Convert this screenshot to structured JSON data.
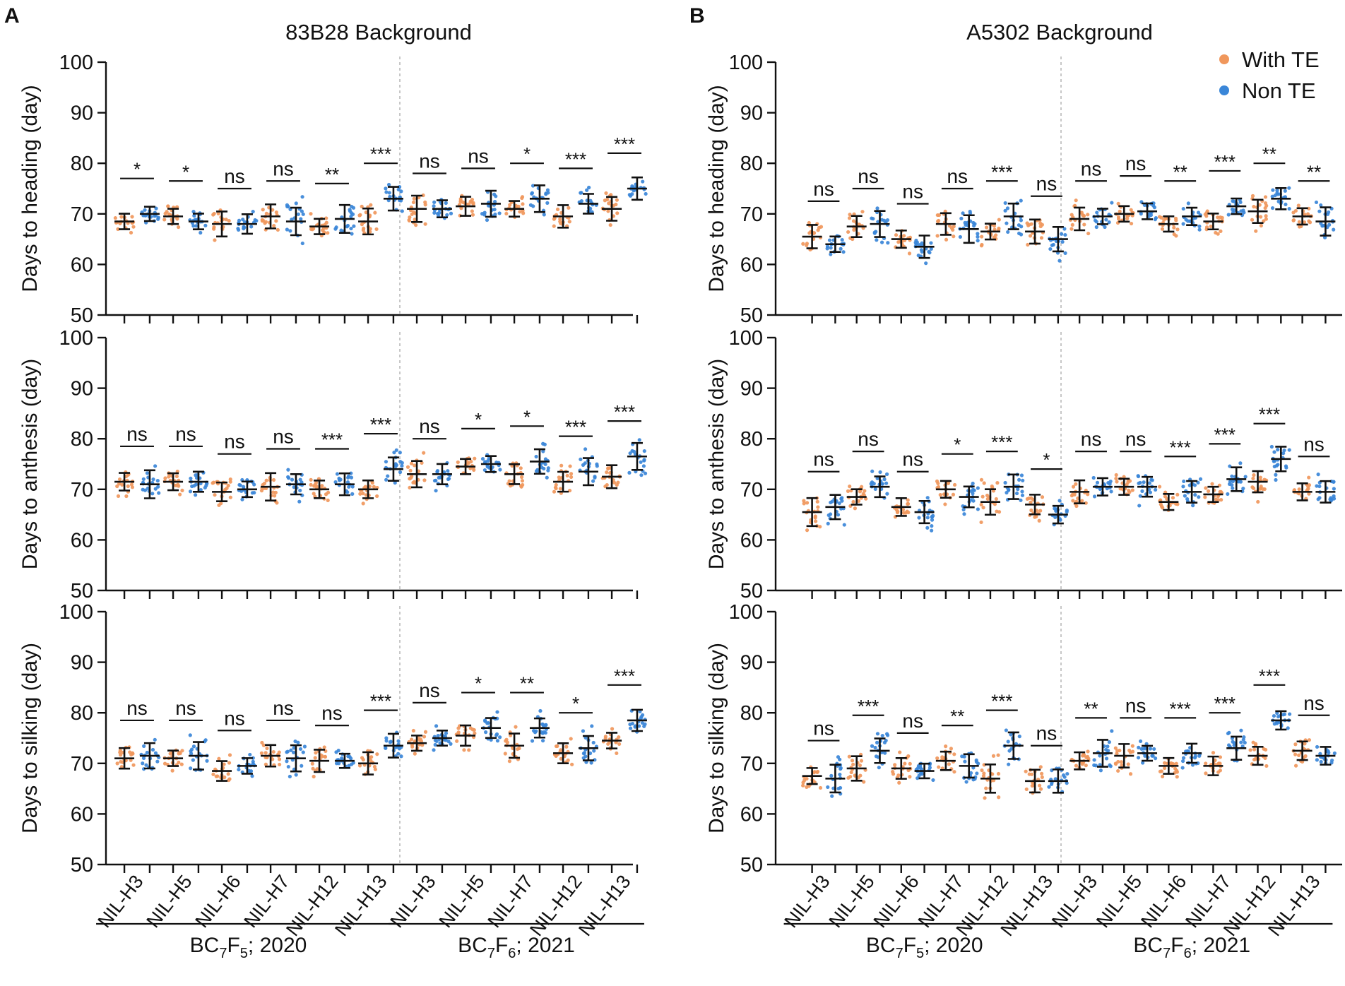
{
  "figure": {
    "panel_letters": [
      "A",
      "B"
    ],
    "legend": {
      "series": [
        {
          "name": "With TE",
          "color": "#f0975c"
        },
        {
          "name": "Non TE",
          "color": "#3a86d8"
        }
      ]
    }
  },
  "chart_data": [
    {
      "type": "scatter",
      "panel": "A",
      "title": "83B28 Background",
      "ylim": [
        50,
        100
      ],
      "yticks": [
        50,
        60,
        70,
        80,
        90,
        100
      ],
      "categories": [
        "NIL-H3",
        "NIL-H5",
        "NIL-H6",
        "NIL-H7",
        "NIL-H12",
        "NIL-H13",
        "NIL-H3",
        "NIL-H5",
        "NIL-H7",
        "NIL-H12",
        "NIL-H13"
      ],
      "year_groups": [
        {
          "label_main": "BC",
          "sub1": "7",
          "mid": "F",
          "sub2": "5",
          "suffix": "; 2020",
          "first": 0,
          "last": 5
        },
        {
          "label_main": "BC",
          "sub1": "7",
          "mid": "F",
          "sub2": "6",
          "suffix": "; 2021",
          "first": 6,
          "last": 10
        }
      ],
      "traits": [
        {
          "ylabel": "Days to heading (day)",
          "with_te": [
            68.5,
            69.5,
            68.0,
            69.5,
            67.5,
            68.5,
            71.0,
            71.5,
            71.0,
            69.5,
            71.0
          ],
          "non_te": [
            70.0,
            68.5,
            68.0,
            68.5,
            69.0,
            73.0,
            71.0,
            72.0,
            73.0,
            72.0,
            75.0
          ],
          "significance": [
            "*",
            "*",
            "ns",
            "ns",
            "**",
            "***",
            "ns",
            "ns",
            "*",
            "***",
            "***"
          ]
        },
        {
          "ylabel": "Days to anthesis (day)",
          "with_te": [
            71.5,
            71.5,
            69.5,
            70.5,
            70.0,
            70.0,
            73.0,
            74.5,
            73.0,
            71.5,
            72.5
          ],
          "non_te": [
            71.0,
            71.5,
            70.0,
            71.0,
            71.0,
            74.0,
            73.0,
            75.0,
            75.5,
            73.5,
            76.5
          ],
          "significance": [
            "ns",
            "ns",
            "ns",
            "ns",
            "***",
            "***",
            "ns",
            "*",
            "*",
            "***",
            "***"
          ]
        },
        {
          "ylabel": "Days to silking (day)",
          "with_te": [
            71.0,
            71.0,
            68.5,
            71.5,
            70.5,
            70.0,
            74.0,
            75.5,
            73.5,
            72.0,
            74.5
          ],
          "non_te": [
            71.5,
            71.5,
            69.5,
            71.0,
            70.5,
            73.5,
            75.0,
            77.0,
            77.0,
            73.0,
            78.5
          ],
          "significance": [
            "ns",
            "ns",
            "ns",
            "ns",
            "ns",
            "***",
            "ns",
            "*",
            "**",
            "*",
            "***"
          ]
        }
      ]
    },
    {
      "type": "scatter",
      "panel": "B",
      "title": "A5302 Background",
      "ylim": [
        50,
        100
      ],
      "yticks": [
        50,
        60,
        70,
        80,
        90,
        100
      ],
      "categories": [
        "NIL-H3",
        "NIL-H5",
        "NIL-H6",
        "NIL-H7",
        "NIL-H12",
        "NIL-H13",
        "NIL-H3",
        "NIL-H5",
        "NIL-H6",
        "NIL-H7",
        "NIL-H12",
        "NIL-H13"
      ],
      "year_groups": [
        {
          "label_main": "BC",
          "sub1": "7",
          "mid": "F",
          "sub2": "5",
          "suffix": "; 2020",
          "first": 0,
          "last": 5
        },
        {
          "label_main": "BC",
          "sub1": "7",
          "mid": "F",
          "sub2": "6",
          "suffix": "; 2021",
          "first": 6,
          "last": 11
        }
      ],
      "traits": [
        {
          "ylabel": "Days to heading (day)",
          "with_te": [
            65.5,
            67.5,
            65.0,
            68.0,
            66.5,
            66.5,
            69.0,
            70.0,
            68.0,
            68.5,
            70.5,
            69.5
          ],
          "non_te": [
            64.0,
            68.0,
            63.5,
            67.0,
            69.5,
            65.0,
            69.5,
            70.5,
            69.5,
            71.5,
            73.0,
            68.5
          ],
          "significance": [
            "ns",
            "ns",
            "ns",
            "ns",
            "***",
            "ns",
            "ns",
            "ns",
            "**",
            "***",
            "**",
            "**"
          ]
        },
        {
          "ylabel": "Days to anthesis (day)",
          "with_te": [
            65.5,
            68.5,
            66.5,
            70.0,
            67.5,
            67.0,
            69.5,
            70.5,
            67.5,
            69.0,
            71.5,
            69.5
          ],
          "non_te": [
            66.5,
            70.5,
            65.5,
            68.5,
            70.5,
            65.0,
            70.5,
            70.5,
            69.5,
            72.0,
            76.0,
            69.5
          ],
          "significance": [
            "ns",
            "ns",
            "ns",
            "*",
            "***",
            "*",
            "ns",
            "ns",
            "***",
            "***",
            "***",
            "ns"
          ]
        },
        {
          "ylabel": "Days to silking (day)",
          "with_te": [
            67.5,
            69.0,
            69.0,
            70.5,
            67.0,
            66.5,
            70.5,
            71.5,
            69.5,
            69.5,
            71.5,
            72.5
          ],
          "non_te": [
            67.0,
            72.5,
            68.5,
            69.5,
            73.5,
            66.5,
            72.0,
            72.0,
            72.0,
            73.0,
            78.5,
            71.5
          ],
          "significance": [
            "ns",
            "***",
            "ns",
            "**",
            "***",
            "ns",
            "**",
            "ns",
            "***",
            "***",
            "***",
            "ns"
          ]
        }
      ]
    }
  ]
}
